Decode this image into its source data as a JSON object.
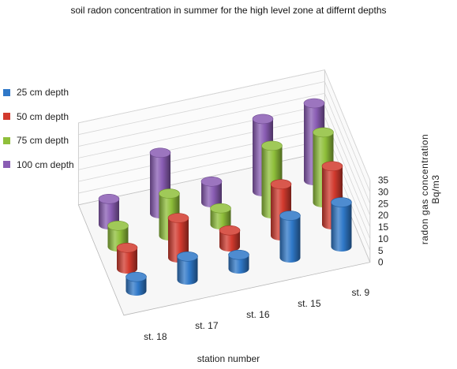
{
  "chart_data": {
    "type": "bar",
    "title": "soil radon concentration in summer for the high level zone at differnt depths",
    "xlabel": "station number",
    "ylabel_line1": "radon gas concentration",
    "ylabel_line2": "Bq/m3",
    "categories": [
      "st. 18",
      "st. 17",
      "st. 16",
      "st. 15",
      "st. 9"
    ],
    "ylim": [
      0,
      35
    ],
    "yticks": [
      "0",
      "5",
      "10",
      "15",
      "20",
      "25",
      "30",
      "35"
    ],
    "grid": true,
    "legend_position": "left",
    "series": [
      {
        "name": "25 cm depth",
        "color": "#2f78c8",
        "values": [
          6,
          10,
          6,
          18,
          19
        ]
      },
      {
        "name": "50 cm depth",
        "color": "#d23a2e",
        "values": [
          9,
          17,
          7,
          22,
          25
        ]
      },
      {
        "name": "75 cm depth",
        "color": "#8fbf3a",
        "values": [
          9,
          18,
          7,
          29,
          30
        ]
      },
      {
        "name": "100 cm depth",
        "color": "#8a5db4",
        "values": [
          11,
          26,
          9,
          31,
          33
        ]
      }
    ]
  }
}
